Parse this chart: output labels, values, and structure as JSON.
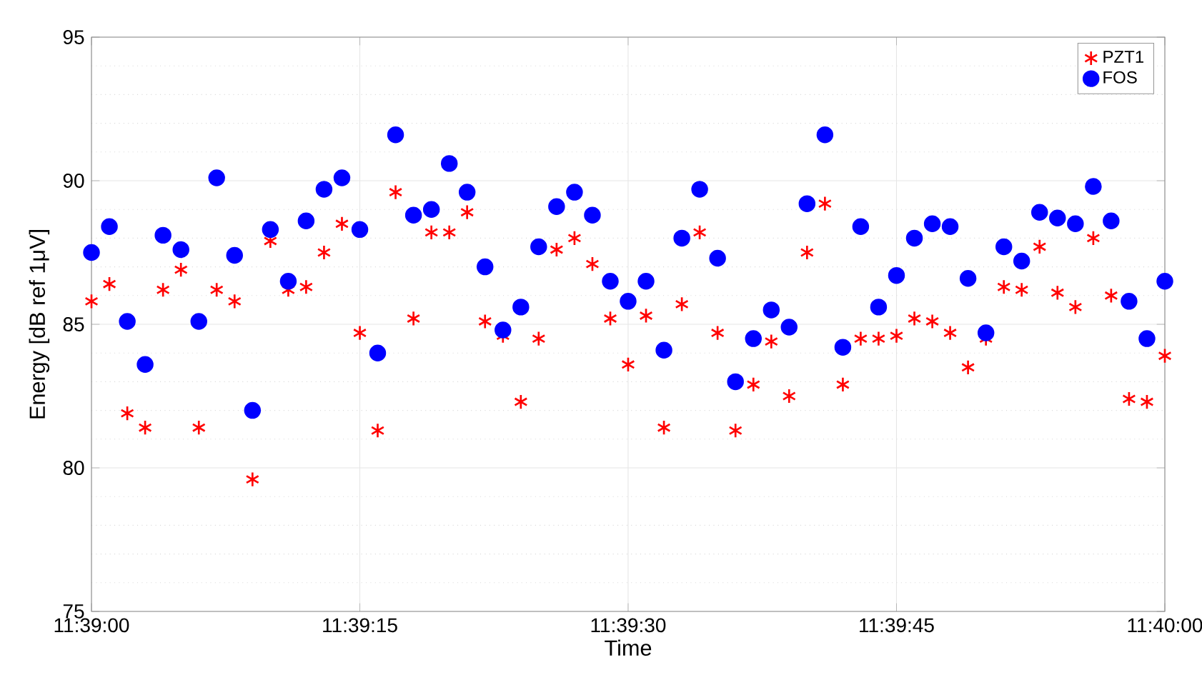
{
  "chart_data": {
    "type": "scatter",
    "xlabel": "Time",
    "ylabel": "Energy [dB ref 1μV]",
    "x": [
      11.65,
      11.650278,
      11.650556,
      11.650833,
      11.651111,
      11.651389,
      11.651667,
      11.651944,
      11.652222,
      11.6525,
      11.652778,
      11.653056,
      11.653333,
      11.653611,
      11.653889,
      11.654167,
      11.654444,
      11.654722,
      11.655,
      11.655278,
      11.655556,
      11.655833,
      11.656111,
      11.656389,
      11.656667,
      11.656944,
      11.657222,
      11.6575,
      11.657778,
      11.658056,
      11.658333,
      11.658611,
      11.658889,
      11.659167,
      11.659444,
      11.659722,
      11.66,
      11.660278,
      11.660556,
      11.660833,
      11.661111,
      11.661389,
      11.661667,
      11.661944,
      11.662222,
      11.6625,
      11.662778,
      11.663056,
      11.663333,
      11.663611,
      11.663889,
      11.664167,
      11.664444,
      11.664722,
      11.665,
      11.665278,
      11.665556,
      11.665833,
      11.666111,
      11.666389,
      11.666667
    ],
    "series": [
      {
        "name": "PZT1",
        "color": "#ff0000",
        "marker": "cross",
        "values": [
          85.8,
          86.4,
          81.9,
          81.4,
          86.2,
          86.9,
          81.4,
          86.2,
          85.8,
          79.6,
          87.9,
          86.2,
          86.3,
          87.5,
          88.5,
          84.7,
          81.3,
          89.6,
          85.2,
          88.2,
          88.2,
          88.9,
          85.1,
          84.6,
          82.3,
          84.5,
          87.6,
          88.0,
          87.1,
          85.2,
          83.6,
          85.3,
          81.4,
          85.7,
          88.2,
          84.7,
          81.3,
          82.9,
          84.4,
          82.5,
          87.5,
          89.2,
          82.9,
          84.5,
          84.5,
          84.6,
          85.2,
          85.1,
          84.7,
          83.5,
          84.5,
          86.3,
          86.2,
          87.7,
          86.1,
          85.6,
          88.0,
          86.0,
          82.4,
          82.3,
          83.9
        ]
      },
      {
        "name": "FOS",
        "color": "#0000ff",
        "marker": "circle",
        "values": [
          87.5,
          88.4,
          85.1,
          83.6,
          88.1,
          87.6,
          85.1,
          90.1,
          87.4,
          82.0,
          88.3,
          86.5,
          88.6,
          89.7,
          90.1,
          88.3,
          84.0,
          91.6,
          88.8,
          89.0,
          90.6,
          89.6,
          87.0,
          84.8,
          85.6,
          87.7,
          89.1,
          89.6,
          88.8,
          86.5,
          85.8,
          86.5,
          84.1,
          88.0,
          89.7,
          87.3,
          83.0,
          84.5,
          85.5,
          84.9,
          89.2,
          91.6,
          84.2,
          88.4,
          85.6,
          86.7,
          88.0,
          88.5,
          88.4,
          86.6,
          84.7,
          87.7,
          87.2,
          88.9,
          88.7,
          88.5,
          89.8,
          88.6,
          85.8,
          84.5,
          86.5
        ]
      }
    ],
    "xlim": [
      11.65,
      11.666667
    ],
    "xticks": [
      {
        "value": 11.65,
        "label": "11:39:00"
      },
      {
        "value": 11.654167,
        "label": "11:39:15"
      },
      {
        "value": 11.658333,
        "label": "11:39:30"
      },
      {
        "value": 11.6625,
        "label": "11:39:45"
      },
      {
        "value": 11.666667,
        "label": "11:40:00"
      }
    ],
    "ylim": [
      75,
      95
    ],
    "yticks": [
      75,
      80,
      85,
      90,
      95
    ],
    "grid": true,
    "legend": "top right"
  }
}
